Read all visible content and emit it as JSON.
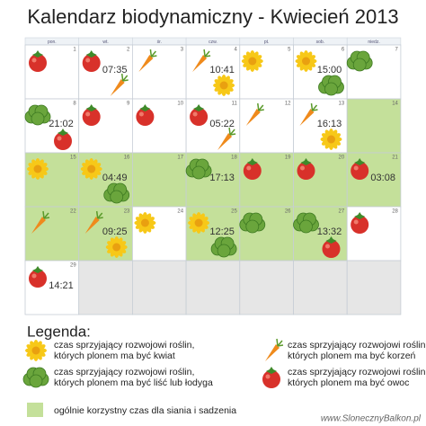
{
  "header": {
    "title": "Kalendarz biodynamiczny - Kwiecień 2013"
  },
  "calendar": {
    "weekdays": [
      "pon.",
      "wt.",
      "śr.",
      "czw.",
      "pt.",
      "sob.",
      "niedz."
    ],
    "weeks": [
      [
        {
          "day": 1,
          "icons": [
            3
          ]
        },
        {
          "day": 2,
          "icons": [
            3,
            2
          ],
          "time": "07:35"
        },
        {
          "day": 3,
          "icons": [
            2
          ]
        },
        {
          "day": 4,
          "icons": [
            2,
            0
          ],
          "time": "10:41"
        },
        {
          "day": 5,
          "icons": [
            0
          ]
        },
        {
          "day": 6,
          "icons": [
            0,
            1
          ],
          "time": "15:00"
        },
        {
          "day": 7,
          "icons": [
            1
          ]
        }
      ],
      [
        {
          "day": 8,
          "icons": [
            1,
            3
          ],
          "time": "21:02"
        },
        {
          "day": 9,
          "icons": [
            3
          ]
        },
        {
          "day": 10,
          "icons": [
            3
          ]
        },
        {
          "day": 11,
          "icons": [
            3,
            2
          ],
          "time": "05:22"
        },
        {
          "day": 12,
          "icons": [
            2
          ]
        },
        {
          "day": 13,
          "icons": [
            2,
            0
          ],
          "time": "16:13"
        },
        {
          "day": 14,
          "icons": [],
          "green": true
        }
      ],
      [
        {
          "day": 15,
          "icons": [
            0
          ],
          "green": true
        },
        {
          "day": 16,
          "icons": [
            0,
            1
          ],
          "time": "04:49",
          "green": true
        },
        {
          "day": 17,
          "icons": [],
          "green": true
        },
        {
          "day": 18,
          "icons": [
            1
          ],
          "time": "17:13",
          "green": true
        },
        {
          "day": 19,
          "icons": [
            3
          ],
          "green": true
        },
        {
          "day": 20,
          "icons": [
            3
          ],
          "green": true
        },
        {
          "day": 21,
          "icons": [
            3
          ],
          "time": "03:08",
          "green": true
        }
      ],
      [
        {
          "day": 22,
          "icons": [
            2
          ],
          "green": true
        },
        {
          "day": 23,
          "icons": [
            2,
            0
          ],
          "time": "09:25",
          "green": true
        },
        {
          "day": 24,
          "icons": [
            0
          ]
        },
        {
          "day": 25,
          "icons": [
            0,
            1
          ],
          "time": "12:25",
          "green": true
        },
        {
          "day": 26,
          "icons": [
            1
          ],
          "green": true
        },
        {
          "day": 27,
          "icons": [
            1,
            3
          ],
          "time": "13:32",
          "green": true
        },
        {
          "day": 28,
          "icons": [
            3
          ]
        }
      ],
      [
        {
          "day": 29,
          "icons": [
            3
          ],
          "time": "14:21"
        },
        null,
        null,
        null,
        null,
        null,
        null
      ]
    ]
  },
  "legend": {
    "title": "Legenda:",
    "items": [
      {
        "icon": "flower",
        "text": "czas sprzyjający rozwojowi roślin, których plonem ma być kwiat"
      },
      {
        "icon": "lettuce",
        "text": "czas sprzyjający rozwojowi roślin, których plonem ma być liść lub łodyga"
      },
      {
        "icon": "carrot",
        "text": "czas sprzyjający rozwojowi roślin, których plonem ma być korzeń"
      },
      {
        "icon": "tomato",
        "text": "czas sprzyjający rozwojowi roślin, których plonem ma być owoc"
      }
    ],
    "green_note": "ogólnie korzystny czas dla siania i sadzenia"
  },
  "footer": {
    "site": "www.SlonecznyBalkon.pl"
  }
}
